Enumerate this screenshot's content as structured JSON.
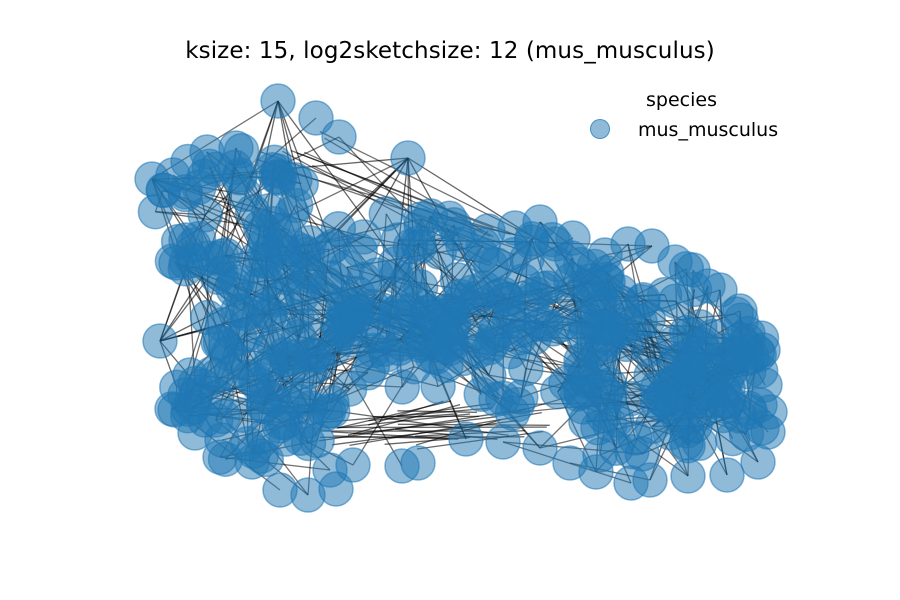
{
  "figure": {
    "title": "ksize: 15, log2sketchsize: 12 (mus_musculus)"
  },
  "legend": {
    "title": "species",
    "entries": [
      {
        "label": "mus_musculus",
        "color": "#1f77b4"
      }
    ]
  },
  "graph": {
    "node_color": "#1f77b4",
    "node_alpha": 0.5,
    "edge_color": "#000000"
  }
}
